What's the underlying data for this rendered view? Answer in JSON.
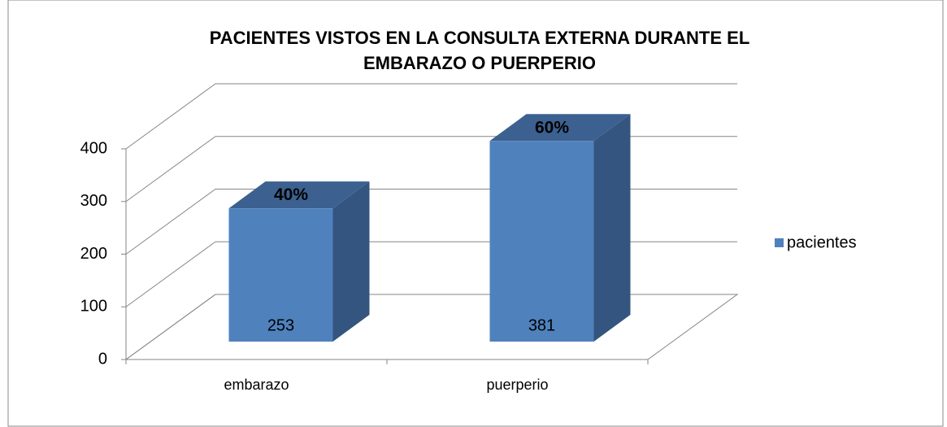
{
  "chart_data": {
    "type": "bar3d",
    "title": [
      "PACIENTES VISTOS EN LA CONSULTA EXTERNA DURANTE EL",
      "EMBARAZO O PUERPERIO"
    ],
    "categories": [
      "embarazo",
      "puerperio"
    ],
    "series": [
      {
        "name": "pacientes",
        "color": "#4f81bd",
        "values": [
          253,
          381
        ]
      }
    ],
    "shares": [
      40,
      60
    ],
    "share_labels": [
      "40%",
      "60%"
    ],
    "ylim": [
      0,
      400
    ],
    "yticks": [
      0,
      100,
      200,
      300,
      400
    ],
    "grid": true,
    "legend": "right"
  }
}
